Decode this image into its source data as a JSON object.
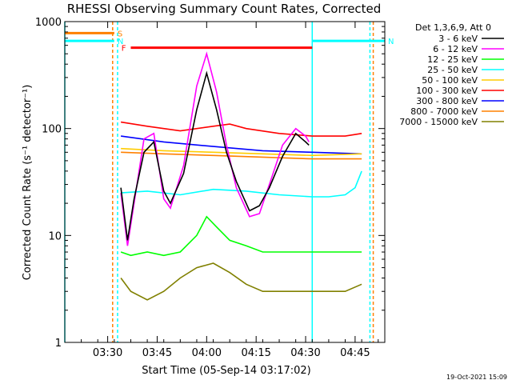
{
  "chart_data": {
    "type": "line",
    "title": "RHESSI Observing Summary Count Rates, Corrected",
    "xlabel": "Start Time (05-Sep-14 03:17:02)",
    "ylabel": "Corrected Count Rate (s⁻¹ detector⁻¹)",
    "ylog": true,
    "ylim": [
      1,
      1000
    ],
    "xlim_minutes": [
      0,
      97
    ],
    "xticks": [
      "03:30",
      "03:45",
      "04:00",
      "04:15",
      "04:30",
      "04:45"
    ],
    "xtick_minutes": [
      13,
      28,
      43,
      58,
      73,
      88
    ],
    "yticks": [
      1,
      10,
      100,
      1000
    ],
    "ytick_labels": [
      "1",
      "10",
      "100",
      "1000"
    ],
    "legend_title": "Det 1,3,6,9, Att 0",
    "legend_position": "right",
    "footer": "19-Oct-2021 15:09",
    "colors": {
      "s3_6": "#000000",
      "s6_12": "#ff00ff",
      "s12_25": "#00ff00",
      "s25_50": "#00ffff",
      "s50_100": "#ffcc00",
      "s100_300": "#ff0000",
      "s300_800": "#0000ff",
      "s800_7000": "#ff8000",
      "s7000_15000": "#808000"
    },
    "series": [
      {
        "name": "3 - 6 keV",
        "key": "s3_6",
        "x": [
          17,
          19,
          21,
          24,
          27,
          30,
          32,
          36,
          40,
          43,
          46,
          49,
          52,
          56,
          59,
          62,
          66,
          70,
          73,
          74
        ],
        "y": [
          28,
          9,
          22,
          60,
          75,
          26,
          20,
          38,
          150,
          330,
          150,
          60,
          32,
          17,
          19,
          28,
          55,
          90,
          75,
          70
        ]
      },
      {
        "name": "6 - 12 keV",
        "key": "s6_12",
        "x": [
          17,
          19,
          21,
          24,
          27,
          30,
          32,
          36,
          40,
          43,
          46,
          49,
          52,
          56,
          59,
          62,
          66,
          70,
          73,
          74
        ],
        "y": [
          25,
          8,
          20,
          80,
          90,
          22,
          18,
          45,
          250,
          500,
          220,
          70,
          28,
          15,
          16,
          30,
          70,
          100,
          85,
          75
        ]
      },
      {
        "name": "12 - 25 keV",
        "key": "s12_25",
        "x": [
          17,
          20,
          25,
          30,
          35,
          40,
          43,
          46,
          50,
          55,
          60,
          65,
          70,
          75,
          80,
          85,
          90
        ],
        "y": [
          7,
          6.5,
          7,
          6.5,
          7,
          10,
          15,
          12,
          9,
          8,
          7,
          7,
          7,
          7,
          7,
          7,
          7
        ]
      },
      {
        "name": "25 - 50 keV",
        "key": "s25_50",
        "x": [
          17,
          25,
          35,
          45,
          55,
          65,
          75,
          80,
          85,
          88,
          90
        ],
        "y": [
          25,
          26,
          24,
          27,
          26,
          24,
          23,
          23,
          24,
          28,
          40
        ]
      },
      {
        "name": "50 - 100 keV",
        "key": "s50_100",
        "x": [
          17,
          30,
          45,
          60,
          75,
          90
        ],
        "y": [
          65,
          62,
          60,
          58,
          56,
          58
        ]
      },
      {
        "name": "100 - 300 keV",
        "key": "s100_300",
        "x": [
          17,
          25,
          35,
          45,
          50,
          55,
          65,
          75,
          85,
          90
        ],
        "y": [
          115,
          105,
          95,
          105,
          110,
          100,
          90,
          85,
          85,
          90
        ]
      },
      {
        "name": "300 - 800 keV",
        "key": "s300_800",
        "x": [
          17,
          30,
          45,
          60,
          75,
          90
        ],
        "y": [
          85,
          75,
          68,
          62,
          60,
          58
        ]
      },
      {
        "name": "800 - 7000 keV",
        "key": "s800_7000",
        "x": [
          17,
          30,
          45,
          60,
          75,
          90
        ],
        "y": [
          60,
          58,
          56,
          54,
          52,
          52
        ]
      },
      {
        "name": "7000 - 15000 keV",
        "key": "s7000_15000",
        "x": [
          17,
          20,
          25,
          30,
          35,
          40,
          45,
          50,
          55,
          60,
          65,
          70,
          75,
          80,
          85,
          90
        ],
        "y": [
          4,
          3,
          2.5,
          3,
          4,
          5,
          5.5,
          4.5,
          3.5,
          3,
          3,
          3,
          3,
          3,
          3,
          3.5
        ]
      }
    ],
    "attenuator_flags": [
      {
        "label": "S",
        "color": "#ff8000",
        "x_start": 0,
        "x_end": 15,
        "y": 780
      },
      {
        "label": "N",
        "color": "#00ffff",
        "x_start": 0,
        "x_end": 15,
        "y": 660
      },
      {
        "label": "N",
        "color": "#00ffff",
        "x_start": 75,
        "x_end": 97,
        "y": 660
      },
      {
        "label": "F",
        "color": "#ff0000",
        "x_start": 20,
        "x_end": 75,
        "y": 570
      }
    ],
    "vlines_minutes": [
      {
        "x": 0,
        "color": "#00ffff",
        "style": "solid"
      },
      {
        "x": 14.5,
        "color": "#ff8000",
        "style": "dashed"
      },
      {
        "x": 16,
        "color": "#00ffff",
        "style": "dashed"
      },
      {
        "x": 75,
        "color": "#00ffff",
        "style": "solid"
      },
      {
        "x": 92.5,
        "color": "#00ffff",
        "style": "dashed"
      },
      {
        "x": 93.5,
        "color": "#ff8000",
        "style": "dashed"
      }
    ]
  }
}
